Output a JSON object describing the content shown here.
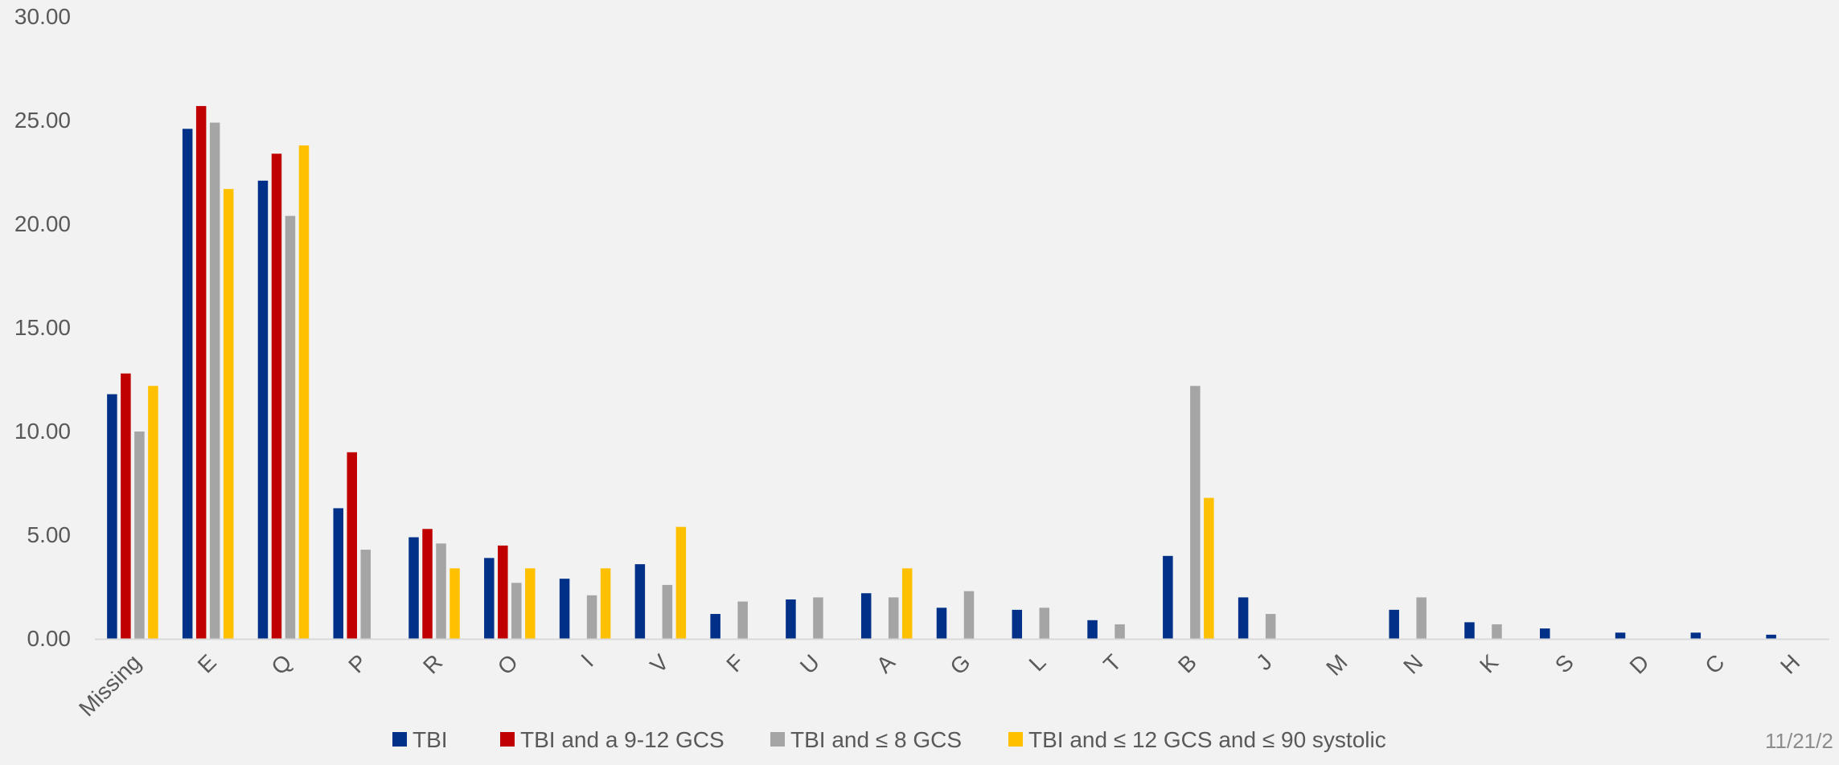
{
  "chart_data": {
    "type": "bar",
    "title": "",
    "xlabel": "",
    "ylabel": "",
    "ylim": [
      0,
      30
    ],
    "y_ticks": [
      "0.00",
      "5.00",
      "10.00",
      "15.00",
      "20.00",
      "25.00",
      "30.00"
    ],
    "categories": [
      "Missing",
      "E",
      "Q",
      "P",
      "R",
      "O",
      "I",
      "V",
      "F",
      "U",
      "A",
      "G",
      "L",
      "T",
      "B",
      "J",
      "M",
      "N",
      "K",
      "S",
      "D",
      "C",
      "H"
    ],
    "series": [
      {
        "name": "TBI",
        "color": "#003087",
        "values": [
          11.8,
          24.6,
          22.1,
          6.3,
          4.9,
          3.9,
          2.9,
          3.6,
          1.2,
          1.9,
          2.2,
          1.5,
          1.4,
          0.9,
          4.0,
          2.0,
          0,
          1.4,
          0.8,
          0.5,
          0.3,
          0.3,
          0.2
        ]
      },
      {
        "name": "TBI and a 9-12 GCS",
        "color": "#c00000",
        "values": [
          12.8,
          25.7,
          23.4,
          9.0,
          5.3,
          4.5,
          0,
          0,
          0,
          0,
          0,
          0,
          0,
          0,
          0,
          0,
          0,
          0,
          0,
          0,
          0,
          0,
          0
        ]
      },
      {
        "name": "TBI and ≤ 8 GCS",
        "color": "#a5a5a5",
        "values": [
          10.0,
          24.9,
          20.4,
          4.3,
          4.6,
          2.7,
          2.1,
          2.6,
          1.8,
          2.0,
          2.0,
          2.3,
          1.5,
          0.7,
          12.2,
          1.2,
          0,
          2.0,
          0.7,
          0,
          0,
          0,
          0
        ]
      },
      {
        "name": "TBI and ≤ 12 GCS and ≤ 90 systolic",
        "color": "#ffc000",
        "values": [
          12.2,
          21.7,
          23.8,
          0,
          3.4,
          3.4,
          3.4,
          5.4,
          0,
          0,
          3.4,
          0,
          0,
          0,
          6.8,
          0,
          0,
          0,
          0,
          0,
          0,
          0,
          0
        ]
      }
    ],
    "legend_position": "bottom",
    "grid": false
  },
  "footer": {
    "date": "11/21/2"
  }
}
